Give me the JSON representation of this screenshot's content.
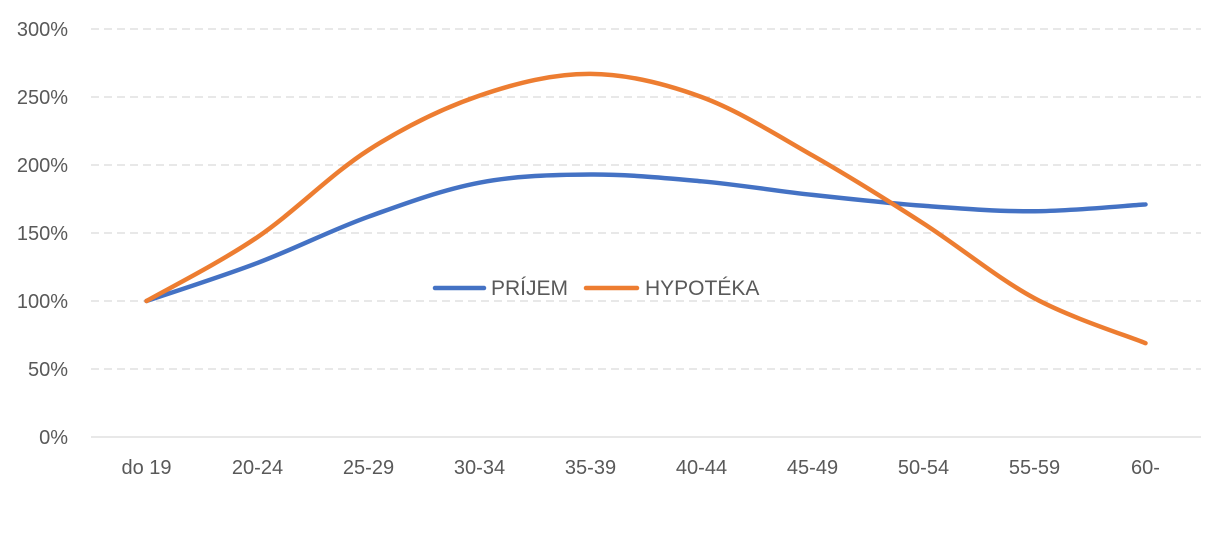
{
  "chart_data": {
    "type": "line",
    "title": "",
    "xlabel": "",
    "ylabel": "",
    "categories": [
      "do 19",
      "20-24",
      "25-29",
      "30-34",
      "35-39",
      "40-44",
      "45-49",
      "50-54",
      "55-59",
      "60-"
    ],
    "series": [
      {
        "name": "PRÍJEM",
        "color": "#4472C4",
        "values": [
          100,
          128,
          162,
          187,
          193,
          188,
          178,
          170,
          166,
          171
        ]
      },
      {
        "name": "HYPOTÉKA",
        "color": "#ED7D31",
        "values": [
          100,
          147,
          211,
          251,
          267,
          250,
          207,
          157,
          102,
          69
        ]
      }
    ],
    "ylim": [
      0,
      300
    ],
    "y_ticks": [
      "0%",
      "50%",
      "100%",
      "150%",
      "200%",
      "250%",
      "300%"
    ],
    "y_tick_values": [
      0,
      50,
      100,
      150,
      200,
      250,
      300
    ],
    "grid": "horizontal dashed",
    "legend_position": "inside-center",
    "smooth": true
  }
}
